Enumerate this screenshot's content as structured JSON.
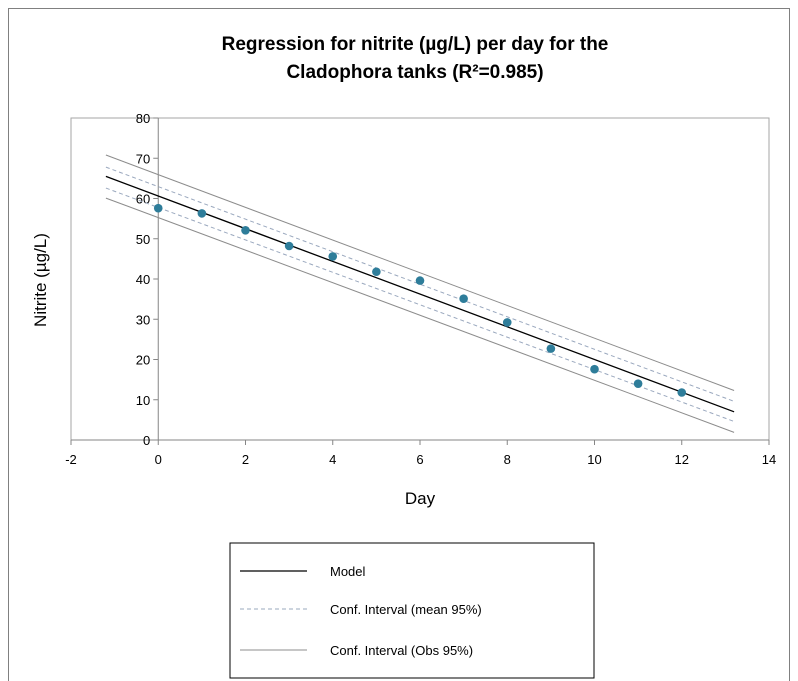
{
  "chart_data": {
    "type": "scatter",
    "title": "Regression for nitrite (µg/L) per day for the Cladophora tanks (R²=0.985)",
    "title_lines": [
      "Regression for nitrite (µg/L) per day for the",
      "Cladophora tanks (R²=0.985)"
    ],
    "xlabel": "Day",
    "ylabel": "Nitrite (µg/L)",
    "xlim": [
      -2,
      14
    ],
    "ylim": [
      0,
      80
    ],
    "x_ticks": [
      "-2",
      "0",
      "2",
      "4",
      "6",
      "8",
      "10",
      "12",
      "14"
    ],
    "y_ticks": [
      "0",
      "10",
      "20",
      "30",
      "40",
      "50",
      "60",
      "70",
      "80"
    ],
    "grid": false,
    "legend_position": "bottom",
    "points": {
      "x": [
        0,
        1,
        2,
        3,
        4,
        5,
        6,
        7,
        8,
        9,
        10,
        11,
        12
      ],
      "y": [
        57.6,
        56.3,
        52.1,
        48.2,
        45.6,
        41.8,
        39.6,
        35.1,
        29.2,
        22.7,
        17.6,
        14.0,
        11.8
      ],
      "color": "#2e7d9a"
    },
    "series": [
      {
        "name": "Model",
        "color": "#000000",
        "style": "solid",
        "x": [
          -1.2,
          13.2
        ],
        "y": [
          65.5,
          7.0
        ]
      },
      {
        "name": "Conf. Interval (mean 95%)",
        "color": "#9aa8be",
        "style": "dashed",
        "x": [
          -1.2,
          13.2
        ],
        "y": [
          67.8,
          9.6
        ],
        "lower": {
          "x": [
            -1.2,
            13.2
          ],
          "y": [
            62.6,
            4.6
          ]
        }
      },
      {
        "name": "Conf. Interval (Obs 95%)",
        "color": "#8c8c8c",
        "style": "solid",
        "x": [
          -1.2,
          13.2
        ],
        "y": [
          70.8,
          12.3
        ],
        "lower": {
          "x": [
            -1.2,
            13.2
          ],
          "y": [
            60.1,
            1.9
          ]
        }
      }
    ],
    "legend": [
      {
        "label": "Model",
        "color": "#000000",
        "style": "solid"
      },
      {
        "label": "Conf. Interval (mean 95%)",
        "color": "#9aa8be",
        "style": "dashed"
      },
      {
        "label": "Conf. Interval (Obs 95%)",
        "color": "#8c8c8c",
        "style": "solid"
      }
    ]
  }
}
